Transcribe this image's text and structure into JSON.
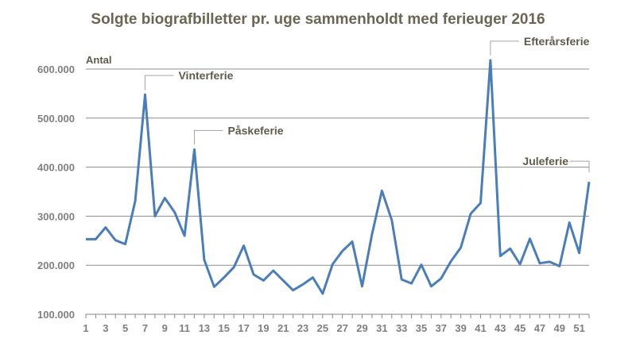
{
  "chart_data": {
    "type": "line",
    "title": "Solgte biografbilletter pr. uge sammenholdt med ferieuger 2016",
    "ylabel": "Antal",
    "xlabel": "",
    "ylim": [
      100000,
      600000
    ],
    "yticks": [
      100000,
      200000,
      300000,
      400000,
      500000,
      600000
    ],
    "ytick_labels": [
      "100.000",
      "200.000",
      "300.000",
      "400.000",
      "500.000",
      "600.000"
    ],
    "xtick_labels": [
      "1",
      "3",
      "5",
      "7",
      "9",
      "11",
      "13",
      "15",
      "17",
      "19",
      "21",
      "23",
      "25",
      "27",
      "29",
      "31",
      "33",
      "35",
      "37",
      "39",
      "41",
      "43",
      "45",
      "47",
      "49",
      "51"
    ],
    "grid": true,
    "color": "#4a7ebb",
    "x": [
      1,
      2,
      3,
      4,
      5,
      6,
      7,
      8,
      9,
      10,
      11,
      12,
      13,
      14,
      15,
      16,
      17,
      18,
      19,
      20,
      21,
      22,
      23,
      24,
      25,
      26,
      27,
      28,
      29,
      30,
      31,
      32,
      33,
      34,
      35,
      36,
      37,
      38,
      39,
      40,
      41,
      42,
      43,
      44,
      45,
      46,
      47,
      48,
      49,
      50,
      51,
      52
    ],
    "values": [
      253000,
      253000,
      277000,
      251000,
      243000,
      331000,
      548000,
      300000,
      337000,
      308000,
      260000,
      436000,
      211000,
      156000,
      175000,
      196000,
      240000,
      181000,
      169000,
      189000,
      169000,
      149000,
      161000,
      175000,
      142000,
      202000,
      229000,
      248000,
      157000,
      263000,
      352000,
      292000,
      171000,
      163000,
      201000,
      157000,
      173000,
      208000,
      236000,
      305000,
      327000,
      618000,
      219000,
      234000,
      202000,
      254000,
      204000,
      207000,
      198000,
      287000,
      225000,
      370000
    ],
    "annotations": [
      {
        "label": "Vinterferie",
        "week": 7
      },
      {
        "label": "Påskeferie",
        "week": 12
      },
      {
        "label": "Efterårsferie",
        "week": 42
      },
      {
        "label": "Juleferie",
        "week": 52
      }
    ]
  }
}
